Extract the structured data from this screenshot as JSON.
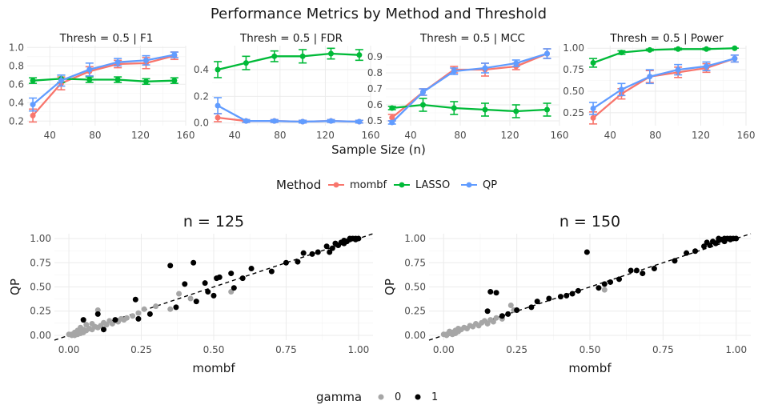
{
  "title": "Performance Metrics by Method and Threshold",
  "colors": {
    "mombf": "#F8766D",
    "LASSO": "#00BA38",
    "QP": "#619CFF",
    "gamma0": "#a6a6a6",
    "gamma1": "#000000"
  },
  "chart_data": [
    {
      "type": "line",
      "facet": "Thresh = 0.5 | F1",
      "title": "Thresh = 0.5 | F1",
      "xlabel": "Sample Size (n)",
      "x": [
        25,
        50,
        75,
        100,
        125,
        150
      ],
      "xticks": [
        40,
        80,
        120,
        160
      ],
      "xlim": [
        20,
        160
      ],
      "yticks": [
        0.2,
        0.4,
        0.6,
        0.8,
        1.0
      ],
      "ytick_labels": [
        "0.2",
        "0.4",
        "0.6",
        "0.8",
        "1.0"
      ],
      "ylim": [
        0.15,
        1.02
      ],
      "series": [
        {
          "name": "mombf",
          "values": [
            0.26,
            0.61,
            0.74,
            0.82,
            0.83,
            0.91
          ],
          "err": [
            0.07,
            0.07,
            0.05,
            0.04,
            0.06,
            0.04
          ]
        },
        {
          "name": "LASSO",
          "values": [
            0.64,
            0.66,
            0.65,
            0.65,
            0.63,
            0.64
          ],
          "err": [
            0.03,
            0.04,
            0.03,
            0.03,
            0.03,
            0.03
          ]
        },
        {
          "name": "QP",
          "values": [
            0.38,
            0.64,
            0.76,
            0.84,
            0.86,
            0.92
          ],
          "err": [
            0.07,
            0.06,
            0.07,
            0.04,
            0.05,
            0.03
          ]
        }
      ]
    },
    {
      "type": "line",
      "facet": "Thresh = 0.5 | FDR",
      "title": "Thresh = 0.5 | FDR",
      "xlabel": "Sample Size (n)",
      "x": [
        25,
        50,
        75,
        100,
        125,
        150
      ],
      "xticks": [
        40,
        80,
        120,
        160
      ],
      "xlim": [
        20,
        160
      ],
      "yticks": [
        0.0,
        0.2,
        0.4
      ],
      "ytick_labels": [
        "0.0",
        "0.2",
        "0.4"
      ],
      "ylim": [
        -0.02,
        0.58
      ],
      "series": [
        {
          "name": "mombf",
          "values": [
            0.04,
            0.015,
            0.015,
            0.01,
            0.015,
            0.01
          ],
          "err": [
            0.03,
            0.01,
            0.01,
            0.01,
            0.01,
            0.01
          ]
        },
        {
          "name": "LASSO",
          "values": [
            0.4,
            0.45,
            0.5,
            0.5,
            0.52,
            0.51
          ],
          "err": [
            0.06,
            0.05,
            0.04,
            0.05,
            0.04,
            0.04
          ]
        },
        {
          "name": "QP",
          "values": [
            0.13,
            0.015,
            0.015,
            0.01,
            0.015,
            0.01
          ],
          "err": [
            0.06,
            0.01,
            0.01,
            0.01,
            0.01,
            0.01
          ]
        }
      ]
    },
    {
      "type": "line",
      "facet": "Thresh = 0.5 | MCC",
      "title": "Thresh = 0.5 | MCC",
      "xlabel": "Sample Size (n)",
      "x": [
        25,
        50,
        75,
        100,
        125,
        150
      ],
      "xticks": [
        40,
        80,
        120,
        160
      ],
      "xlim": [
        20,
        160
      ],
      "yticks": [
        0.5,
        0.6,
        0.7,
        0.8,
        0.9
      ],
      "ytick_labels": [
        "0.5",
        "0.6",
        "0.7",
        "0.8",
        "0.9"
      ],
      "ylim": [
        0.47,
        0.97
      ],
      "series": [
        {
          "name": "mombf",
          "values": [
            0.52,
            0.68,
            0.82,
            0.82,
            0.84,
            0.92
          ],
          "err": [
            0.02,
            0.02,
            0.02,
            0.04,
            0.02,
            0.03
          ]
        },
        {
          "name": "LASSO",
          "values": [
            0.58,
            0.6,
            0.58,
            0.57,
            0.56,
            0.57
          ],
          "err": [
            0.01,
            0.04,
            0.04,
            0.04,
            0.04,
            0.04
          ]
        },
        {
          "name": "QP",
          "values": [
            0.49,
            0.68,
            0.81,
            0.83,
            0.86,
            0.92
          ],
          "err": [
            0.01,
            0.02,
            0.02,
            0.03,
            0.02,
            0.03
          ]
        }
      ]
    },
    {
      "type": "line",
      "facet": "Thresh = 0.5 | Power",
      "title": "Thresh = 0.5 | Power",
      "xlabel": "Sample Size (n)",
      "x": [
        25,
        50,
        75,
        100,
        125,
        150
      ],
      "xticks": [
        40,
        80,
        120,
        160
      ],
      "xlim": [
        20,
        160
      ],
      "yticks": [
        0.25,
        0.5,
        0.75,
        1.0
      ],
      "ytick_labels": [
        "0.25",
        "0.50",
        "0.75",
        "1.00"
      ],
      "ylim": [
        0.1,
        1.03
      ],
      "series": [
        {
          "name": "mombf",
          "values": [
            0.19,
            0.47,
            0.67,
            0.72,
            0.77,
            0.88
          ],
          "err": [
            0.07,
            0.06,
            0.07,
            0.06,
            0.05,
            0.04
          ]
        },
        {
          "name": "LASSO",
          "values": [
            0.83,
            0.95,
            0.98,
            0.99,
            0.99,
            1.0
          ],
          "err": [
            0.05,
            0.02,
            0.01,
            0.01,
            0.01,
            0.0
          ]
        },
        {
          "name": "QP",
          "values": [
            0.3,
            0.52,
            0.67,
            0.75,
            0.79,
            0.88
          ],
          "err": [
            0.07,
            0.07,
            0.08,
            0.06,
            0.05,
            0.04
          ]
        }
      ]
    },
    {
      "type": "scatter",
      "title": "n = 125",
      "xlabel": "mombf",
      "ylabel": "QP",
      "xlim": [
        -0.05,
        1.05
      ],
      "ylim": [
        -0.05,
        1.05
      ],
      "ticks": [
        0.0,
        0.25,
        0.5,
        0.75,
        1.0
      ],
      "tick_labels": [
        "0.00",
        "0.25",
        "0.50",
        "0.75",
        "1.00"
      ],
      "reference_line": "y = x (dashed)",
      "points": [
        [
          0.01,
          0.01,
          0
        ],
        [
          0.02,
          0.02,
          0
        ],
        [
          0.02,
          0.03,
          0
        ],
        [
          0.03,
          0.02,
          0
        ],
        [
          0.03,
          0.05,
          0
        ],
        [
          0.04,
          0.04,
          0
        ],
        [
          0.04,
          0.08,
          0
        ],
        [
          0.05,
          0.03,
          0
        ],
        [
          0.05,
          0.06,
          0
        ],
        [
          0.06,
          0.05,
          0
        ],
        [
          0.06,
          0.11,
          0
        ],
        [
          0.07,
          0.07,
          0
        ],
        [
          0.08,
          0.06,
          0
        ],
        [
          0.08,
          0.12,
          0
        ],
        [
          0.09,
          0.09,
          0
        ],
        [
          0.1,
          0.08,
          0
        ],
        [
          0.1,
          0.26,
          0
        ],
        [
          0.11,
          0.1,
          0
        ],
        [
          0.12,
          0.13,
          0
        ],
        [
          0.13,
          0.11,
          0
        ],
        [
          0.14,
          0.15,
          0
        ],
        [
          0.15,
          0.12,
          0
        ],
        [
          0.16,
          0.15,
          0
        ],
        [
          0.17,
          0.14,
          0
        ],
        [
          0.18,
          0.17,
          0
        ],
        [
          0.19,
          0.16,
          0
        ],
        [
          0.2,
          0.18,
          0
        ],
        [
          0.22,
          0.2,
          0
        ],
        [
          0.24,
          0.23,
          0
        ],
        [
          0.26,
          0.27,
          0
        ],
        [
          0.3,
          0.3,
          0
        ],
        [
          0.35,
          0.27,
          0
        ],
        [
          0.38,
          0.43,
          0
        ],
        [
          0.42,
          0.38,
          0
        ],
        [
          0.56,
          0.45,
          0
        ],
        [
          0.01,
          0.0,
          0
        ],
        [
          0.0,
          0.01,
          0
        ],
        [
          0.02,
          0.0,
          0
        ],
        [
          0.03,
          0.01,
          0
        ],
        [
          0.04,
          0.02,
          0
        ],
        [
          0.05,
          0.16,
          1
        ],
        [
          0.1,
          0.22,
          1
        ],
        [
          0.12,
          0.06,
          1
        ],
        [
          0.16,
          0.16,
          1
        ],
        [
          0.23,
          0.37,
          1
        ],
        [
          0.24,
          0.17,
          1
        ],
        [
          0.28,
          0.22,
          1
        ],
        [
          0.35,
          0.72,
          1
        ],
        [
          0.37,
          0.29,
          1
        ],
        [
          0.4,
          0.53,
          1
        ],
        [
          0.43,
          0.75,
          1
        ],
        [
          0.44,
          0.35,
          1
        ],
        [
          0.47,
          0.54,
          1
        ],
        [
          0.48,
          0.45,
          1
        ],
        [
          0.5,
          0.41,
          1
        ],
        [
          0.51,
          0.59,
          1
        ],
        [
          0.52,
          0.6,
          1
        ],
        [
          0.56,
          0.64,
          1
        ],
        [
          0.57,
          0.49,
          1
        ],
        [
          0.6,
          0.59,
          1
        ],
        [
          0.63,
          0.69,
          1
        ],
        [
          0.7,
          0.66,
          1
        ],
        [
          0.75,
          0.75,
          1
        ],
        [
          0.79,
          0.76,
          1
        ],
        [
          0.81,
          0.85,
          1
        ],
        [
          0.84,
          0.84,
          1
        ],
        [
          0.86,
          0.86,
          1
        ],
        [
          0.89,
          0.92,
          1
        ],
        [
          0.9,
          0.86,
          1
        ],
        [
          0.91,
          0.9,
          1
        ],
        [
          0.92,
          0.95,
          1
        ],
        [
          0.93,
          0.93,
          1
        ],
        [
          0.94,
          0.96,
          1
        ],
        [
          0.95,
          0.98,
          1
        ],
        [
          0.96,
          0.97,
          1
        ],
        [
          0.97,
          0.99,
          1
        ],
        [
          0.98,
          1.0,
          1
        ],
        [
          0.99,
          0.99,
          1
        ],
        [
          1.0,
          1.0,
          1
        ],
        [
          0.97,
          1.0,
          1
        ],
        [
          0.99,
          1.0,
          1
        ],
        [
          0.95,
          0.95,
          1
        ]
      ]
    },
    {
      "type": "scatter",
      "title": "n = 150",
      "xlabel": "mombf",
      "ylabel": "QP",
      "xlim": [
        -0.05,
        1.05
      ],
      "ylim": [
        -0.05,
        1.05
      ],
      "ticks": [
        0.0,
        0.25,
        0.5,
        0.75,
        1.0
      ],
      "tick_labels": [
        "0.00",
        "0.25",
        "0.50",
        "0.75",
        "1.00"
      ],
      "reference_line": "y = x (dashed)",
      "points": [
        [
          0.01,
          0.01,
          0
        ],
        [
          0.02,
          0.02,
          0
        ],
        [
          0.02,
          0.04,
          0
        ],
        [
          0.03,
          0.03,
          0
        ],
        [
          0.04,
          0.05,
          0
        ],
        [
          0.05,
          0.04,
          0
        ],
        [
          0.05,
          0.07,
          0
        ],
        [
          0.06,
          0.06,
          0
        ],
        [
          0.07,
          0.08,
          0
        ],
        [
          0.08,
          0.07,
          0
        ],
        [
          0.09,
          0.1,
          0
        ],
        [
          0.1,
          0.09,
          0
        ],
        [
          0.11,
          0.12,
          0
        ],
        [
          0.12,
          0.1,
          0
        ],
        [
          0.13,
          0.13,
          0
        ],
        [
          0.14,
          0.15,
          0
        ],
        [
          0.15,
          0.12,
          0
        ],
        [
          0.16,
          0.16,
          0
        ],
        [
          0.17,
          0.14,
          0
        ],
        [
          0.18,
          0.18,
          0
        ],
        [
          0.2,
          0.17,
          0
        ],
        [
          0.23,
          0.31,
          0
        ],
        [
          0.24,
          0.26,
          0
        ],
        [
          0.55,
          0.47,
          0
        ],
        [
          0.0,
          0.01,
          0
        ],
        [
          0.01,
          0.0,
          0
        ],
        [
          0.03,
          0.01,
          0
        ],
        [
          0.04,
          0.02,
          0
        ],
        [
          0.15,
          0.25,
          1
        ],
        [
          0.16,
          0.45,
          1
        ],
        [
          0.18,
          0.44,
          1
        ],
        [
          0.2,
          0.2,
          1
        ],
        [
          0.22,
          0.22,
          1
        ],
        [
          0.25,
          0.26,
          1
        ],
        [
          0.3,
          0.29,
          1
        ],
        [
          0.32,
          0.35,
          1
        ],
        [
          0.36,
          0.38,
          1
        ],
        [
          0.4,
          0.4,
          1
        ],
        [
          0.42,
          0.41,
          1
        ],
        [
          0.44,
          0.43,
          1
        ],
        [
          0.46,
          0.46,
          1
        ],
        [
          0.49,
          0.86,
          1
        ],
        [
          0.53,
          0.49,
          1
        ],
        [
          0.55,
          0.53,
          1
        ],
        [
          0.57,
          0.55,
          1
        ],
        [
          0.6,
          0.58,
          1
        ],
        [
          0.64,
          0.67,
          1
        ],
        [
          0.66,
          0.67,
          1
        ],
        [
          0.68,
          0.64,
          1
        ],
        [
          0.72,
          0.69,
          1
        ],
        [
          0.79,
          0.77,
          1
        ],
        [
          0.83,
          0.85,
          1
        ],
        [
          0.86,
          0.87,
          1
        ],
        [
          0.89,
          0.92,
          1
        ],
        [
          0.9,
          0.96,
          1
        ],
        [
          0.91,
          0.93,
          1
        ],
        [
          0.92,
          0.97,
          1
        ],
        [
          0.93,
          0.95,
          1
        ],
        [
          0.94,
          0.98,
          1
        ],
        [
          0.95,
          0.99,
          1
        ],
        [
          0.96,
          0.97,
          1
        ],
        [
          0.97,
          1.0,
          1
        ],
        [
          0.98,
          0.99,
          1
        ],
        [
          0.99,
          1.0,
          1
        ],
        [
          1.0,
          1.0,
          1
        ],
        [
          0.94,
          1.0,
          1
        ],
        [
          0.96,
          1.0,
          1
        ],
        [
          0.98,
          1.0,
          1
        ]
      ]
    }
  ],
  "xlabel_shared": "Sample Size (n)",
  "legend_method": {
    "title": "Method",
    "items": [
      "mombf",
      "LASSO",
      "QP"
    ]
  },
  "legend_gamma": {
    "title": "gamma",
    "items": [
      "0",
      "1"
    ]
  }
}
